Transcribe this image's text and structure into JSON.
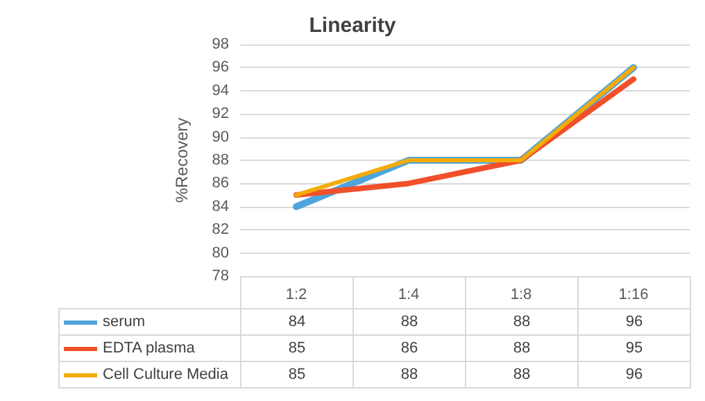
{
  "chart_data": {
    "type": "line",
    "title": "Linearity",
    "ylabel": "%Recovery",
    "categories": [
      "1:2",
      "1:4",
      "1:8",
      "1:16"
    ],
    "series": [
      {
        "name": "serum",
        "color": "#4ea4dc",
        "values": [
          84,
          88,
          88,
          96
        ]
      },
      {
        "name": "EDTA plasma",
        "color": "#f0502a",
        "values": [
          85,
          86,
          88,
          95
        ]
      },
      {
        "name": "Cell Culture Media",
        "color": "#f2ac0a",
        "values": [
          85,
          88,
          88,
          96
        ]
      }
    ],
    "ylim": [
      78,
      98
    ],
    "yticks": [
      78,
      80,
      82,
      84,
      86,
      88,
      90,
      92,
      94,
      96,
      98
    ],
    "grid": "y",
    "legend": "bottom",
    "data_labels": true,
    "marker": "none",
    "line_style": "solid"
  }
}
